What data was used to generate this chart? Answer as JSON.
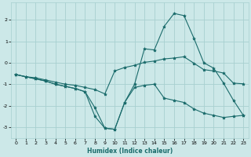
{
  "xlabel": "Humidex (Indice chaleur)",
  "bg_color": "#cce8e8",
  "grid_color": "#a8d0d0",
  "line_color": "#1a6b6b",
  "xlim": [
    -0.5,
    23.5
  ],
  "ylim": [
    -3.5,
    2.8
  ],
  "yticks": [
    -3,
    -2,
    -1,
    0,
    1,
    2
  ],
  "xticks": [
    0,
    1,
    2,
    3,
    4,
    5,
    6,
    7,
    8,
    9,
    10,
    11,
    12,
    13,
    14,
    15,
    16,
    17,
    18,
    19,
    20,
    21,
    22,
    23
  ],
  "x": [
    0,
    1,
    2,
    3,
    4,
    5,
    6,
    7,
    8,
    9,
    10,
    11,
    12,
    13,
    14,
    15,
    16,
    17,
    18,
    19,
    20,
    21,
    22,
    23
  ],
  "series1": [
    -0.55,
    -0.65,
    -0.75,
    -0.85,
    -1.0,
    -1.1,
    -1.2,
    -1.35,
    -2.5,
    -3.05,
    -3.1,
    -1.85,
    -1.15,
    -1.05,
    -1.0,
    -1.65,
    -1.75,
    -1.85,
    -2.15,
    -2.35,
    -2.45,
    -2.55,
    -2.5,
    -2.45
  ],
  "series2": [
    -0.55,
    -0.65,
    -0.75,
    -0.85,
    -1.0,
    -1.1,
    -1.2,
    -1.35,
    -2.1,
    -3.05,
    -3.1,
    -1.85,
    -1.0,
    0.65,
    0.6,
    1.7,
    2.3,
    2.2,
    1.15,
    0.0,
    -0.25,
    -0.95,
    -1.75,
    -2.45
  ],
  "series3": [
    -0.55,
    -0.65,
    -0.7,
    -0.8,
    -0.9,
    -1.0,
    -1.05,
    -1.15,
    -1.25,
    -1.45,
    -0.38,
    -0.22,
    -0.12,
    0.02,
    0.08,
    0.18,
    0.22,
    0.28,
    -0.02,
    -0.32,
    -0.38,
    -0.48,
    -0.95,
    -0.98
  ]
}
